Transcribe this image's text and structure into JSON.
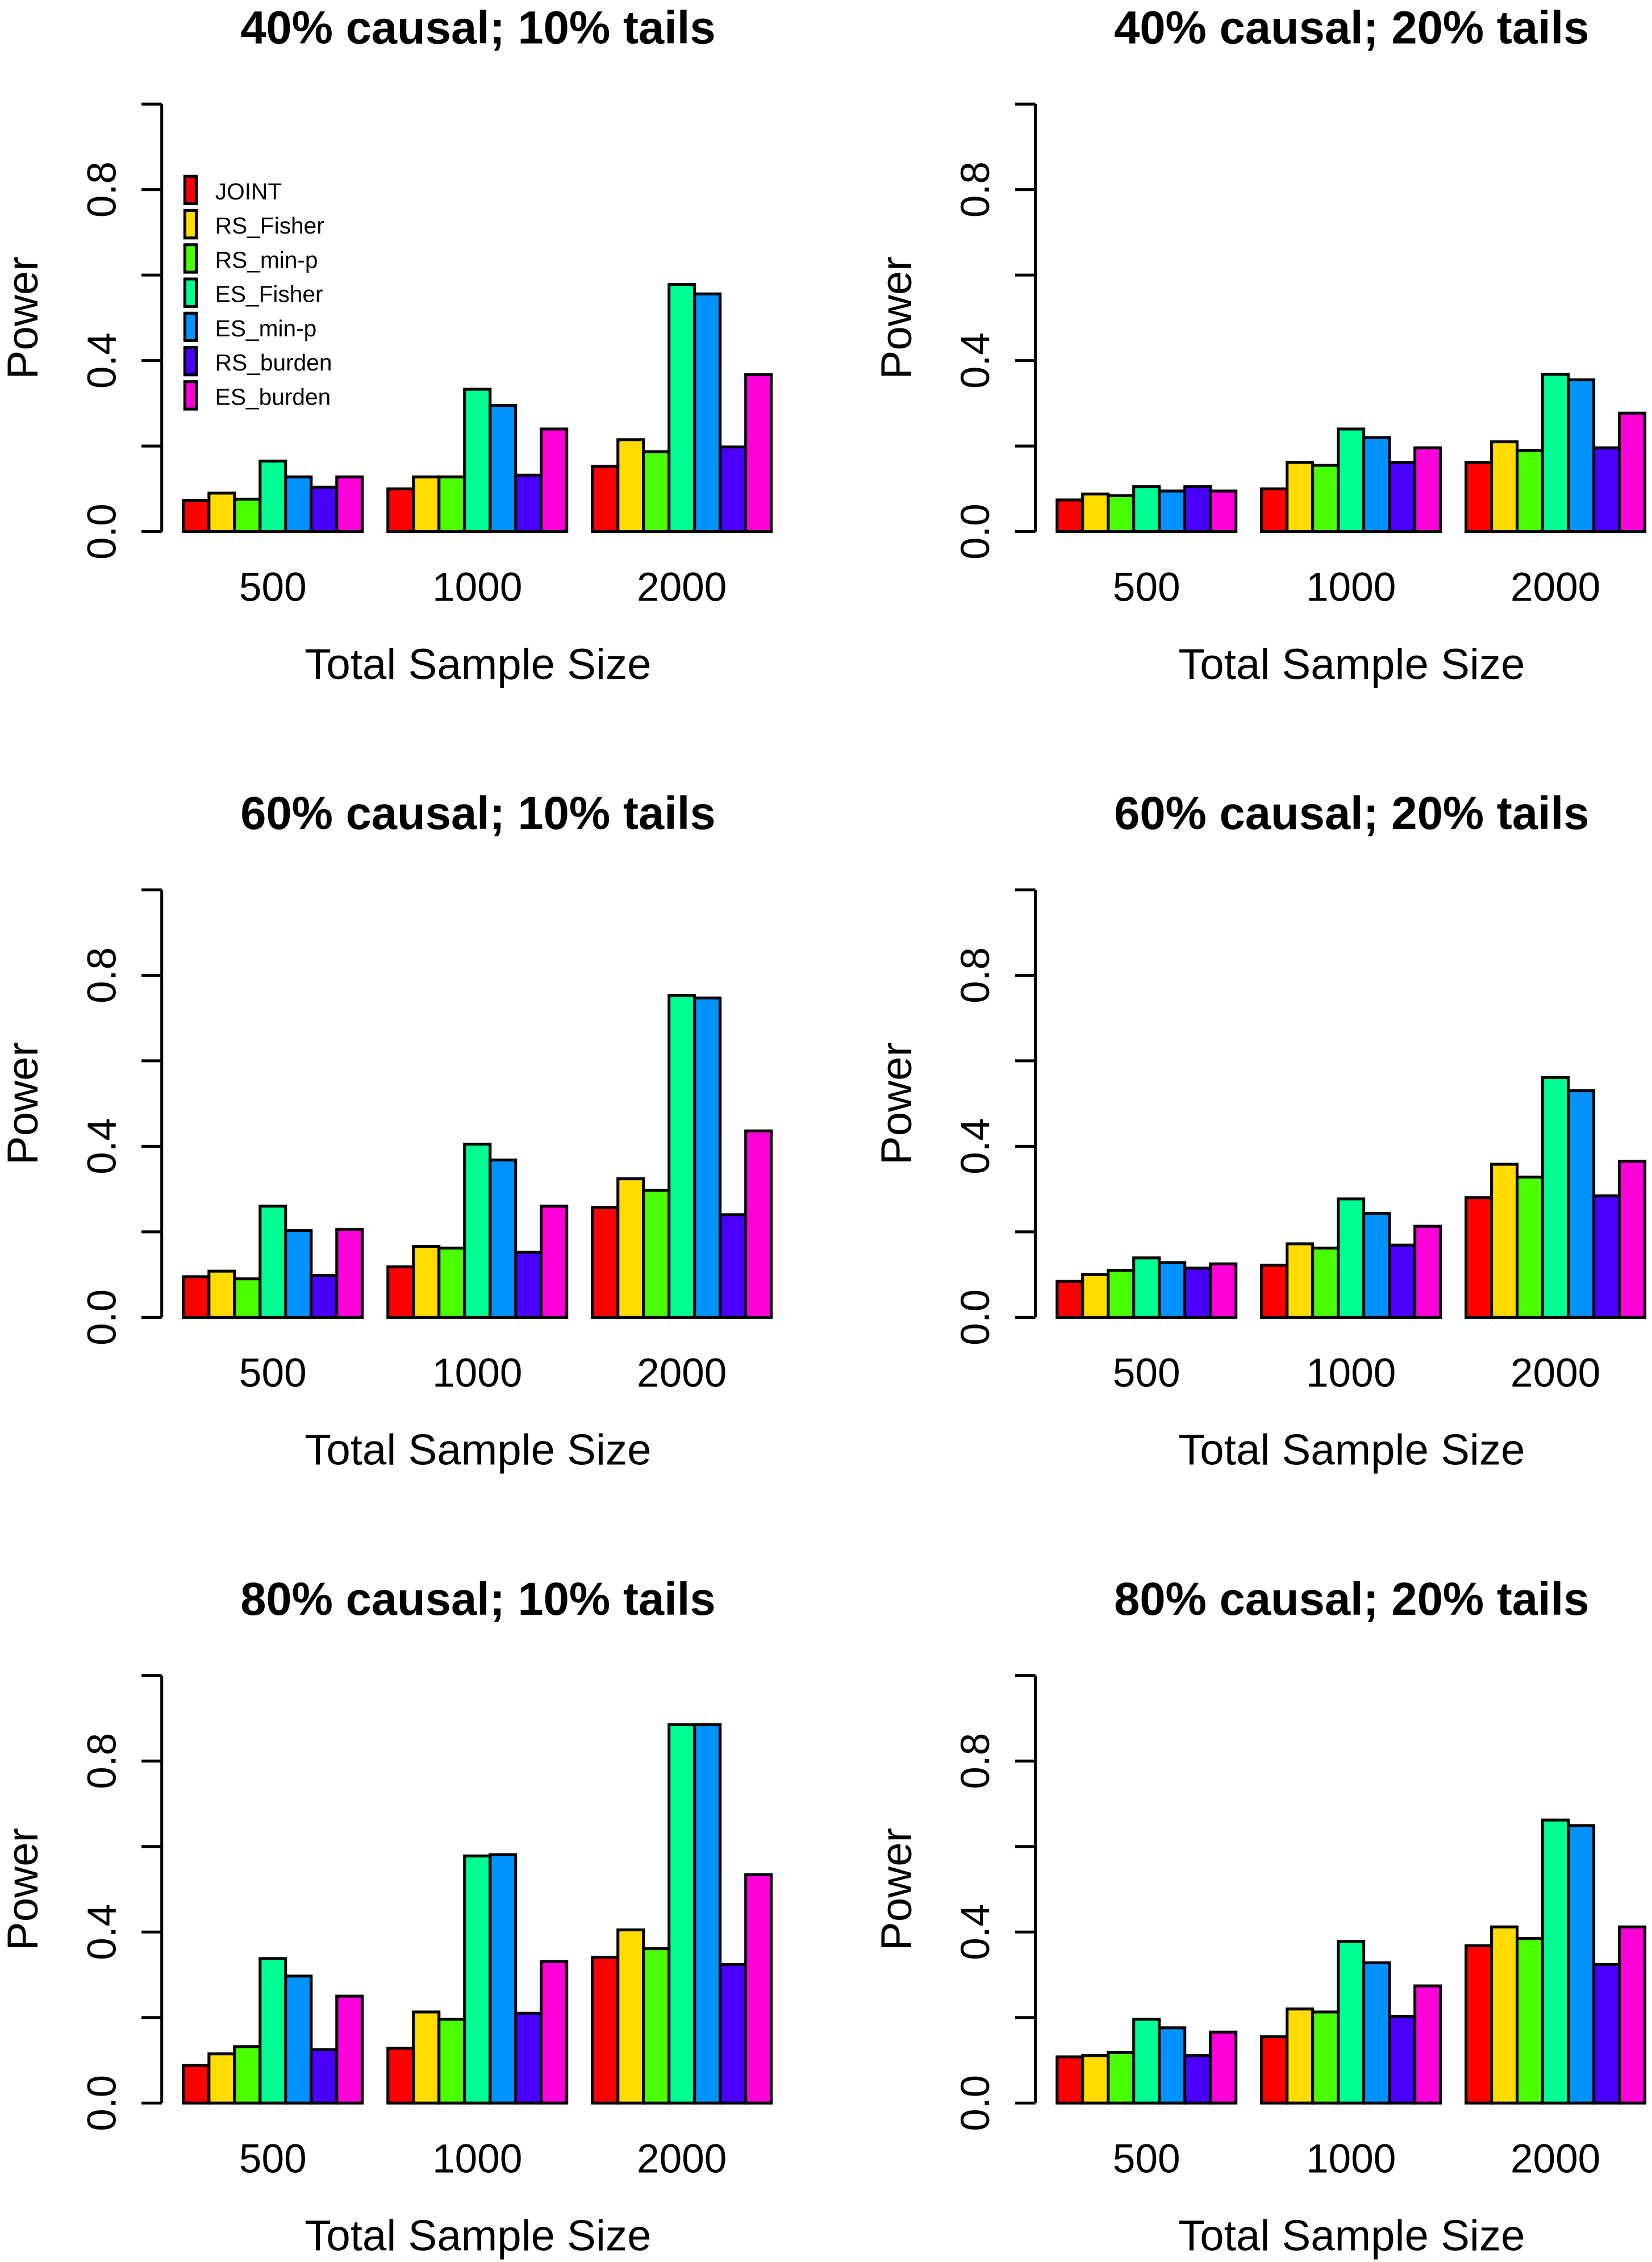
{
  "chart_data": [
    {
      "type": "bar",
      "title": "40% causal; 10% tails",
      "xlabel": "Total Sample Size",
      "ylabel": "Power",
      "ylim": [
        0,
        1
      ],
      "yticks": [
        0,
        0.2,
        0.4,
        0.6,
        0.8,
        1.0
      ],
      "ytick_labels": [
        "0.0",
        "0.4",
        "0.8"
      ],
      "categories": [
        "500",
        "1000",
        "2000"
      ],
      "legend": true,
      "series": [
        {
          "name": "JOINT",
          "values": [
            0.073,
            0.1,
            0.153
          ]
        },
        {
          "name": "RS_Fisher",
          "values": [
            0.09,
            0.128,
            0.215
          ]
        },
        {
          "name": "RS_min-p",
          "values": [
            0.076,
            0.128,
            0.187
          ]
        },
        {
          "name": "ES_Fisher",
          "values": [
            0.165,
            0.333,
            0.578
          ]
        },
        {
          "name": "ES_min-p",
          "values": [
            0.128,
            0.295,
            0.556
          ]
        },
        {
          "name": "RS_burden",
          "values": [
            0.104,
            0.132,
            0.198
          ]
        },
        {
          "name": "ES_burden",
          "values": [
            0.128,
            0.24,
            0.367
          ]
        }
      ]
    },
    {
      "type": "bar",
      "title": "40% causal; 20% tails",
      "xlabel": "Total Sample Size",
      "ylabel": "Power",
      "ylim": [
        0,
        1
      ],
      "yticks": [
        0,
        0.2,
        0.4,
        0.6,
        0.8,
        1.0
      ],
      "ytick_labels": [
        "0.0",
        "0.4",
        "0.8"
      ],
      "categories": [
        "500",
        "1000",
        "2000"
      ],
      "legend": false,
      "series": [
        {
          "name": "JOINT",
          "values": [
            0.074,
            0.1,
            0.162
          ]
        },
        {
          "name": "RS_Fisher",
          "values": [
            0.088,
            0.162,
            0.21
          ]
        },
        {
          "name": "RS_min-p",
          "values": [
            0.084,
            0.155,
            0.19
          ]
        },
        {
          "name": "ES_Fisher",
          "values": [
            0.105,
            0.24,
            0.368
          ]
        },
        {
          "name": "ES_min-p",
          "values": [
            0.095,
            0.22,
            0.355
          ]
        },
        {
          "name": "RS_burden",
          "values": [
            0.105,
            0.162,
            0.196
          ]
        },
        {
          "name": "ES_burden",
          "values": [
            0.095,
            0.196,
            0.277
          ]
        }
      ]
    },
    {
      "type": "bar",
      "title": "60% causal; 10% tails",
      "xlabel": "Total Sample Size",
      "ylabel": "Power",
      "ylim": [
        0,
        1
      ],
      "yticks": [
        0,
        0.2,
        0.4,
        0.6,
        0.8,
        1.0
      ],
      "ytick_labels": [
        "0.0",
        "0.4",
        "0.8"
      ],
      "categories": [
        "500",
        "1000",
        "2000"
      ],
      "legend": false,
      "series": [
        {
          "name": "JOINT",
          "values": [
            0.095,
            0.118,
            0.257
          ]
        },
        {
          "name": "RS_Fisher",
          "values": [
            0.108,
            0.166,
            0.324
          ]
        },
        {
          "name": "RS_min-p",
          "values": [
            0.09,
            0.162,
            0.297
          ]
        },
        {
          "name": "ES_Fisher",
          "values": [
            0.26,
            0.405,
            0.753
          ]
        },
        {
          "name": "ES_min-p",
          "values": [
            0.203,
            0.368,
            0.747
          ]
        },
        {
          "name": "RS_burden",
          "values": [
            0.098,
            0.152,
            0.24
          ]
        },
        {
          "name": "ES_burden",
          "values": [
            0.206,
            0.26,
            0.436
          ]
        }
      ]
    },
    {
      "type": "bar",
      "title": "60% causal; 20% tails",
      "xlabel": "Total Sample Size",
      "ylabel": "Power",
      "ylim": [
        0,
        1
      ],
      "yticks": [
        0,
        0.2,
        0.4,
        0.6,
        0.8,
        1.0
      ],
      "ytick_labels": [
        "0.0",
        "0.4",
        "0.8"
      ],
      "categories": [
        "500",
        "1000",
        "2000"
      ],
      "legend": false,
      "series": [
        {
          "name": "JOINT",
          "values": [
            0.084,
            0.122,
            0.28
          ]
        },
        {
          "name": "RS_Fisher",
          "values": [
            0.1,
            0.172,
            0.358
          ]
        },
        {
          "name": "RS_min-p",
          "values": [
            0.11,
            0.162,
            0.328
          ]
        },
        {
          "name": "ES_Fisher",
          "values": [
            0.139,
            0.277,
            0.561
          ]
        },
        {
          "name": "ES_min-p",
          "values": [
            0.128,
            0.243,
            0.53
          ]
        },
        {
          "name": "RS_burden",
          "values": [
            0.115,
            0.169,
            0.284
          ]
        },
        {
          "name": "ES_burden",
          "values": [
            0.125,
            0.213,
            0.365
          ]
        }
      ]
    },
    {
      "type": "bar",
      "title": "80% causal; 10% tails",
      "xlabel": "Total Sample Size",
      "ylabel": "Power",
      "ylim": [
        0,
        1
      ],
      "yticks": [
        0,
        0.2,
        0.4,
        0.6,
        0.8,
        1.0
      ],
      "ytick_labels": [
        "0.0",
        "0.4",
        "0.8"
      ],
      "categories": [
        "500",
        "1000",
        "2000"
      ],
      "legend": false,
      "series": [
        {
          "name": "JOINT",
          "values": [
            0.088,
            0.128,
            0.341
          ]
        },
        {
          "name": "RS_Fisher",
          "values": [
            0.115,
            0.213,
            0.405
          ]
        },
        {
          "name": "RS_min-p",
          "values": [
            0.132,
            0.196,
            0.361
          ]
        },
        {
          "name": "ES_Fisher",
          "values": [
            0.338,
            0.578,
            0.885
          ]
        },
        {
          "name": "ES_min-p",
          "values": [
            0.297,
            0.581,
            0.885
          ]
        },
        {
          "name": "RS_burden",
          "values": [
            0.125,
            0.21,
            0.324
          ]
        },
        {
          "name": "ES_burden",
          "values": [
            0.25,
            0.331,
            0.534
          ]
        }
      ]
    },
    {
      "type": "bar",
      "title": "80% causal; 20% tails",
      "xlabel": "Total Sample Size",
      "ylabel": "Power",
      "ylim": [
        0,
        1
      ],
      "yticks": [
        0,
        0.2,
        0.4,
        0.6,
        0.8,
        1.0
      ],
      "ytick_labels": [
        "0.0",
        "0.4",
        "0.8"
      ],
      "categories": [
        "500",
        "1000",
        "2000"
      ],
      "legend": false,
      "series": [
        {
          "name": "JOINT",
          "values": [
            0.108,
            0.155,
            0.368
          ]
        },
        {
          "name": "RS_Fisher",
          "values": [
            0.111,
            0.22,
            0.412
          ]
        },
        {
          "name": "RS_min-p",
          "values": [
            0.118,
            0.213,
            0.385
          ]
        },
        {
          "name": "ES_Fisher",
          "values": [
            0.196,
            0.378,
            0.662
          ]
        },
        {
          "name": "ES_min-p",
          "values": [
            0.176,
            0.328,
            0.649
          ]
        },
        {
          "name": "RS_burden",
          "values": [
            0.111,
            0.203,
            0.324
          ]
        },
        {
          "name": "ES_burden",
          "values": [
            0.166,
            0.274,
            0.412
          ]
        }
      ]
    }
  ],
  "colors": [
    "#FF0000",
    "#FFDB00",
    "#49FF00",
    "#00FF92",
    "#0092FF",
    "#4900FF",
    "#FF00DB"
  ]
}
